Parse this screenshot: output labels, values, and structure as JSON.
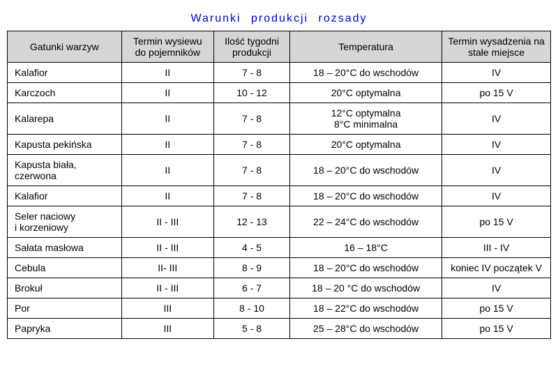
{
  "title": "Warunki   produkcji   rozsady",
  "colors": {
    "title": "#0000cc",
    "header_bg": "#d6d6d6",
    "border": "#000000",
    "text": "#000000",
    "background": "#ffffff"
  },
  "fonts": {
    "title_size": 16,
    "body_size": 14
  },
  "table": {
    "columns": [
      "Gatunki warzyw",
      "Termin wysiewu do pojemników",
      "Ilość tygodni produkcji",
      "Temperatura",
      "Termin wysadzenia na stałe miejsce"
    ],
    "col_widths": [
      "21%",
      "17%",
      "14%",
      "28%",
      "20%"
    ],
    "col_align": [
      "left",
      "center",
      "center",
      "center",
      "center"
    ],
    "rows": [
      {
        "name": "Kalafior",
        "sow": "II",
        "weeks": "7 - 8",
        "temp": "18 – 20°C do wschodów",
        "out": "IV"
      },
      {
        "name": "Karczoch",
        "sow": "II",
        "weeks": "10 - 12",
        "temp": "20°C optymalna",
        "out": "po 15 V"
      },
      {
        "name": "Kalarepa",
        "sow": "II",
        "weeks": "7 - 8",
        "temp_lines": [
          "12°C optymalna",
          "8°C minimalna"
        ],
        "out": "IV"
      },
      {
        "name": "Kapusta pekińska",
        "sow": "II",
        "weeks": "7 - 8",
        "temp": "20°C optymalna",
        "out": "IV"
      },
      {
        "name_lines": [
          "Kapusta biała,",
          "czerwona"
        ],
        "sow": "II",
        "weeks": "7 - 8",
        "temp": "18 – 20°C do wschodów",
        "out": "IV"
      },
      {
        "name": "Kalafior",
        "sow": "II",
        "weeks": "7 - 8",
        "temp": "18 – 20°C do wschodów",
        "out": "IV"
      },
      {
        "name_lines": [
          "Seler naciowy",
          "i  korzeniowy"
        ],
        "sow": "II - III",
        "weeks": "12 - 13",
        "temp": "22 – 24°C do wschodów",
        "out": "po 15 V"
      },
      {
        "name": "Sałata masłowa",
        "sow": "II - III",
        "weeks": "4 - 5",
        "temp": "16 – 18°C",
        "out": "III - IV"
      },
      {
        "name": "Cebula",
        "sow": "II- III",
        "weeks": "8 - 9",
        "temp": "18 – 20°C do wschodów",
        "out": "koniec IV początek V"
      },
      {
        "name": "Brokuł",
        "sow": "II - III",
        "weeks": "6 - 7",
        "temp": "18 – 20 °C do wschodów",
        "out": "IV"
      },
      {
        "name": "Por",
        "sow": "III",
        "weeks": "8 - 10",
        "temp": "18 – 22°C do wschodów",
        "out": "po 15 V"
      },
      {
        "name": "Papryka",
        "sow": "III",
        "weeks": "5 - 8",
        "temp": "25 – 28°C do wschodów",
        "out": "po 15 V"
      }
    ]
  }
}
